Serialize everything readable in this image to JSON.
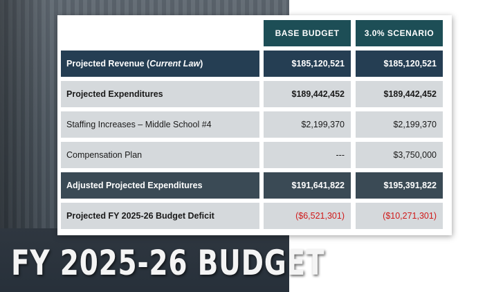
{
  "page_title": "FY 2025-26 BUDGET",
  "table": {
    "headers": [
      "BASE BUDGET",
      "3.0% SCENARIO"
    ],
    "rows": [
      {
        "label": "Projected Revenue (",
        "label_italic": "Current Law",
        "label_end": ")",
        "base": "$185,120,521",
        "scenario": "$185,120,521"
      },
      {
        "label": "Projected Expenditures",
        "base": "$189,442,452",
        "scenario": "$189,442,452"
      },
      {
        "label": "Staffing Increases – Middle School #4",
        "base": "$2,199,370",
        "scenario": "$2,199,370"
      },
      {
        "label": "Compensation Plan",
        "base": "---",
        "scenario": "$3,750,000"
      },
      {
        "label": "Adjusted Projected Expenditures",
        "base": "$191,641,822",
        "scenario": "$195,391,822"
      },
      {
        "label": "Projected FY 2025-26 Budget Deficit",
        "base": "($6,521,301)",
        "scenario": "($10,271,301)"
      }
    ]
  },
  "colors": {
    "header_teal": "#1d4e56",
    "row_navy": "#253e53",
    "row_grey": "#d5d9dc",
    "row_slate": "#3a4a55",
    "deficit_red": "#d01818"
  }
}
